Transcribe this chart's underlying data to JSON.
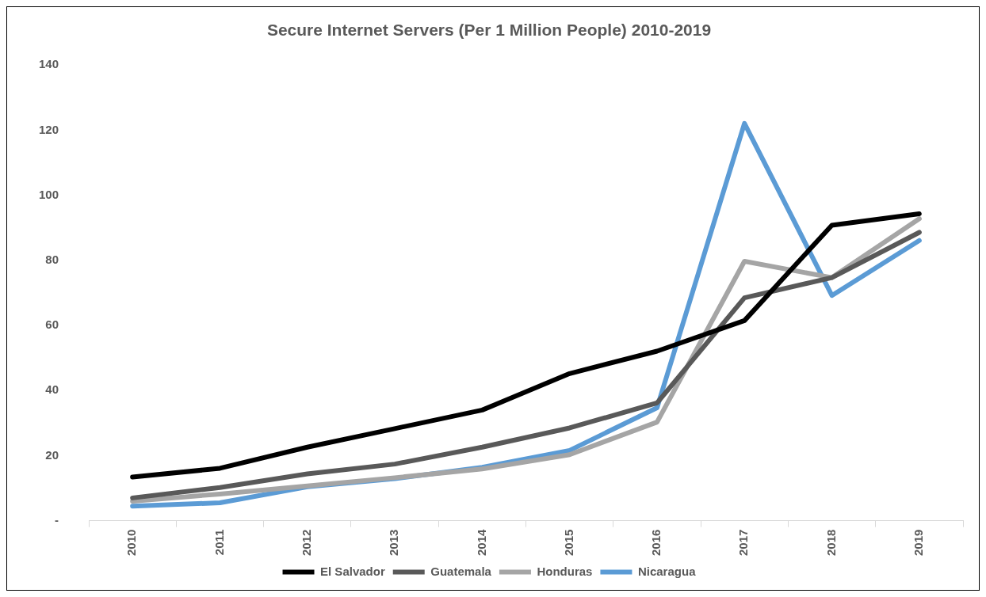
{
  "chart_data": {
    "type": "line",
    "title": "Secure Internet Servers (Per 1 Million People) 2010-2019",
    "categories": [
      "2010",
      "2011",
      "2012",
      "2013",
      "2014",
      "2015",
      "2016",
      "2017",
      "2018",
      "2019"
    ],
    "series": [
      {
        "name": "El Salvador",
        "color": "#000000",
        "values": [
          13.4,
          16.1,
          22.6,
          28.3,
          34,
          45.2,
          52.1,
          61.5,
          90.8,
          94.3
        ]
      },
      {
        "name": "Guatemala",
        "color": "#595959",
        "values": [
          7,
          10.2,
          14.4,
          17.4,
          22.6,
          28.5,
          36.2,
          68.5,
          74.7,
          88.6
        ]
      },
      {
        "name": "Honduras",
        "color": "#a5a5a5",
        "values": [
          6,
          8.2,
          10.7,
          13.2,
          15.9,
          20.3,
          30.3,
          79.7,
          74.7,
          92.8
        ]
      },
      {
        "name": "Nicaragua",
        "color": "#5b9bd5",
        "values": [
          4.5,
          5.5,
          10.4,
          12.9,
          16.4,
          21.6,
          34.7,
          122.1,
          69.2,
          86.1
        ]
      }
    ],
    "ylim": [
      0,
      140
    ],
    "yticks": [
      {
        "value": 0,
        "label": "-"
      },
      20,
      40,
      60,
      80,
      100,
      120,
      140
    ],
    "grid": false,
    "legend": "bottom",
    "marker": "none",
    "line_style": "solid"
  }
}
